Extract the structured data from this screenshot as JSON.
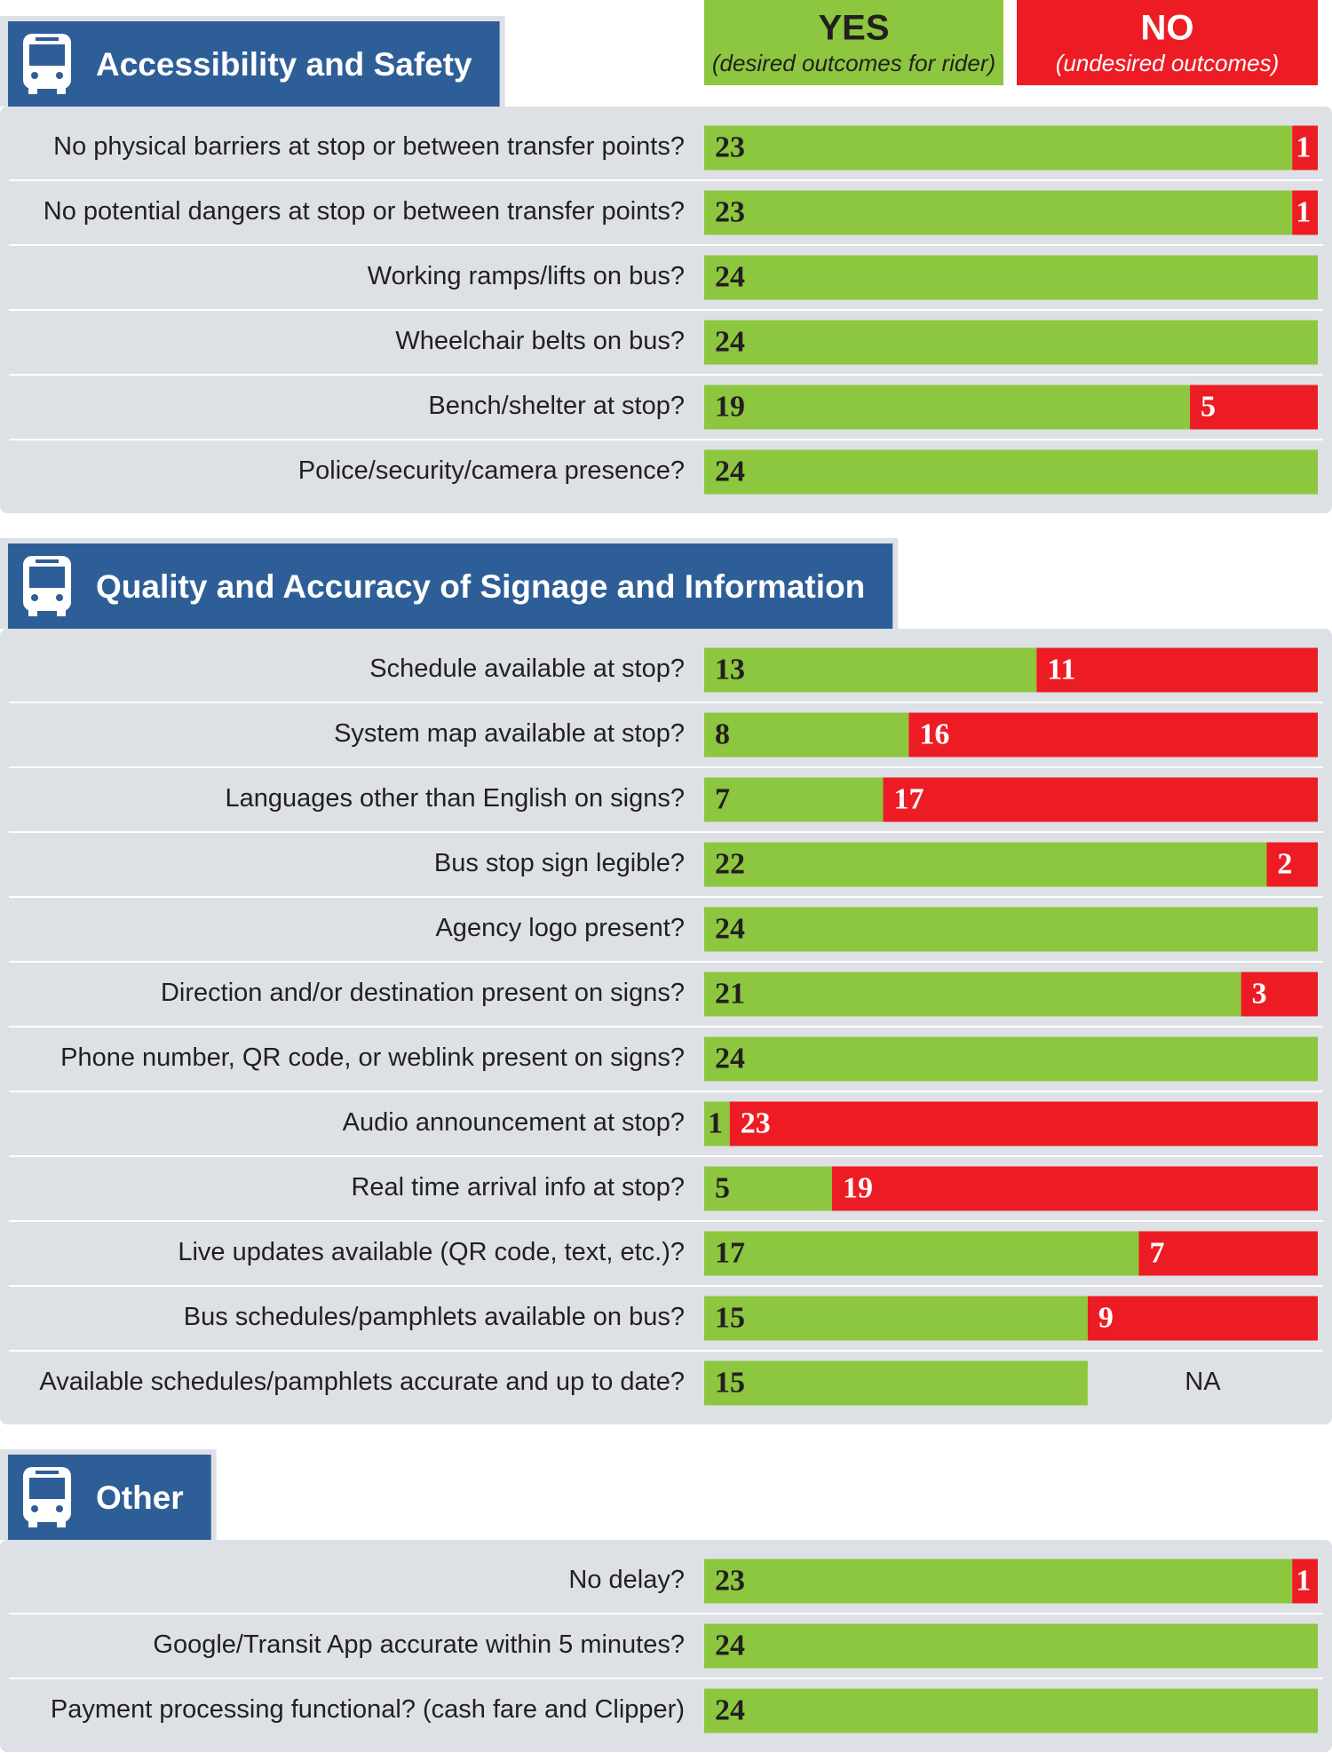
{
  "chart_data": {
    "type": "bar",
    "orientation": "horizontal",
    "stacked": true,
    "xlim": [
      0,
      24
    ],
    "series": [
      {
        "name": "YES",
        "description": "(desired outcomes for rider)",
        "color": "#8dc63f"
      },
      {
        "name": "NO",
        "description": "(undesired outcomes)",
        "color": "#ed1c24"
      }
    ],
    "groups": [
      {
        "title": "Accessibility and Safety",
        "categories": [
          "No physical barriers at stop or between transfer points?",
          "No potential dangers at stop or between transfer points?",
          "Working ramps/lifts on bus?",
          "Wheelchair belts on bus?",
          "Bench/shelter at stop?",
          "Police/security/camera presence?"
        ],
        "values": [
          [
            23,
            23,
            24,
            24,
            19,
            24
          ],
          [
            1,
            1,
            0,
            0,
            5,
            0
          ]
        ]
      },
      {
        "title": "Quality and Accuracy of Signage and Information",
        "categories": [
          "Schedule available at stop?",
          "System map available at stop?",
          "Languages other than English on signs?",
          "Bus stop sign legible?",
          "Agency logo present?",
          "Direction and/or destination present on signs?",
          "Phone number, QR code, or weblink present on signs?",
          "Audio announcement at stop?",
          "Real time arrival info at stop?",
          "Live updates available (QR code, text, etc.)?",
          "Bus schedules/pamphlets available on bus?",
          "Available schedules/pamphlets accurate and up to date?"
        ],
        "values": [
          [
            13,
            8,
            7,
            22,
            24,
            21,
            24,
            1,
            5,
            17,
            15,
            15
          ],
          [
            11,
            16,
            17,
            2,
            0,
            3,
            0,
            23,
            19,
            7,
            9,
            null
          ]
        ],
        "value_labels": [
          null,
          null,
          null,
          null,
          null,
          null,
          null,
          null,
          null,
          null,
          null,
          "NA"
        ]
      },
      {
        "title": "Other",
        "categories": [
          "No delay?",
          "Google/Transit App accurate within 5 minutes?",
          "Payment processing functional? (cash fare and Clipper)"
        ],
        "values": [
          [
            23,
            24,
            24
          ],
          [
            1,
            0,
            0
          ]
        ]
      }
    ]
  }
}
